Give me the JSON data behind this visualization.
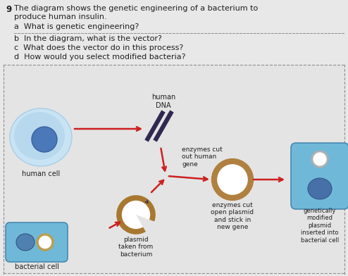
{
  "bg_top": "#e8e8e8",
  "bg_diagram": "#e0e0e0",
  "title_number": "9",
  "q_a": "a  What is genetic engineering?",
  "q_b": "b  In the diagram, what is the vector?",
  "q_c": "c  What does the vector do in this process?",
  "q_d": "d  How would you select modified bacteria?",
  "label_human_cell": "human cell",
  "label_human_dna": "human\nDNA",
  "label_enzymes_cut_human": "enzymes cut\nout human\ngene",
  "label_plasmid_taken": "plasmid\ntaken from\nbacterium",
  "label_enzymes_cut_open": "enzymes cut\nopen plasmid\nand stick in\nnew gene",
  "label_genetically_modified": "genetically\nmodified\nplasmid\ninserted into\nbacterial cell",
  "label_bacterial_cell": "bacterial cell",
  "human_cell_outer": "#b8d8ee",
  "human_cell_mid": "#a0c8e4",
  "human_cell_nucleus": "#4a78b8",
  "bacterial_cell_bg": "#70b8d8",
  "bacterial_cell_nuc": "#5080b0",
  "plasmid_color": "#a87830",
  "plasmid_open_color": "#b08040",
  "dna_color": "#302850",
  "arrow_color": "#cc2020",
  "text_color": "#202020",
  "dashed_color": "#909090",
  "mod_cell_bg": "#70b8d8",
  "mod_cell_nuc": "#4870a8"
}
